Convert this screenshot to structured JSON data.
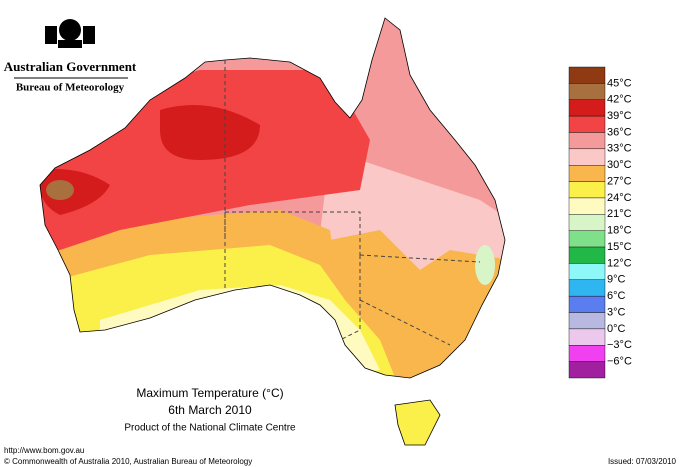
{
  "header": {
    "government": "Australian Government",
    "bureau": "Bureau of Meteorology"
  },
  "map": {
    "title": "Maximum Temperature (°C)",
    "date": "6th March 2010",
    "product": "Product of the National Climate Centre"
  },
  "legend": {
    "colors": [
      "#8f3a12",
      "#a8703f",
      "#d41c1c",
      "#f24444",
      "#f59a9a",
      "#fac8c6",
      "#f9b64c",
      "#fbf04a",
      "#fffac0",
      "#d8f5c8",
      "#7fe08a",
      "#22b848",
      "#8ef7f7",
      "#2fb6f0",
      "#5a7df0",
      "#b8b8e0",
      "#ecc8ec",
      "#f040f0",
      "#a020a0"
    ],
    "labels": [
      "45°C",
      "42°C",
      "39°C",
      "36°C",
      "33°C",
      "30°C",
      "27°C",
      "24°C",
      "21°C",
      "18°C",
      "15°C",
      "12°C",
      "9°C",
      "6°C",
      "3°C",
      "0°C",
      "−3°C",
      "−6°C"
    ]
  },
  "footer": {
    "url": "http://www.bom.gov.au",
    "copyright": "© Commonwealth of Australia 2010, Australian Bureau of Meteorology",
    "issued": "Issued: 07/03/2010"
  }
}
